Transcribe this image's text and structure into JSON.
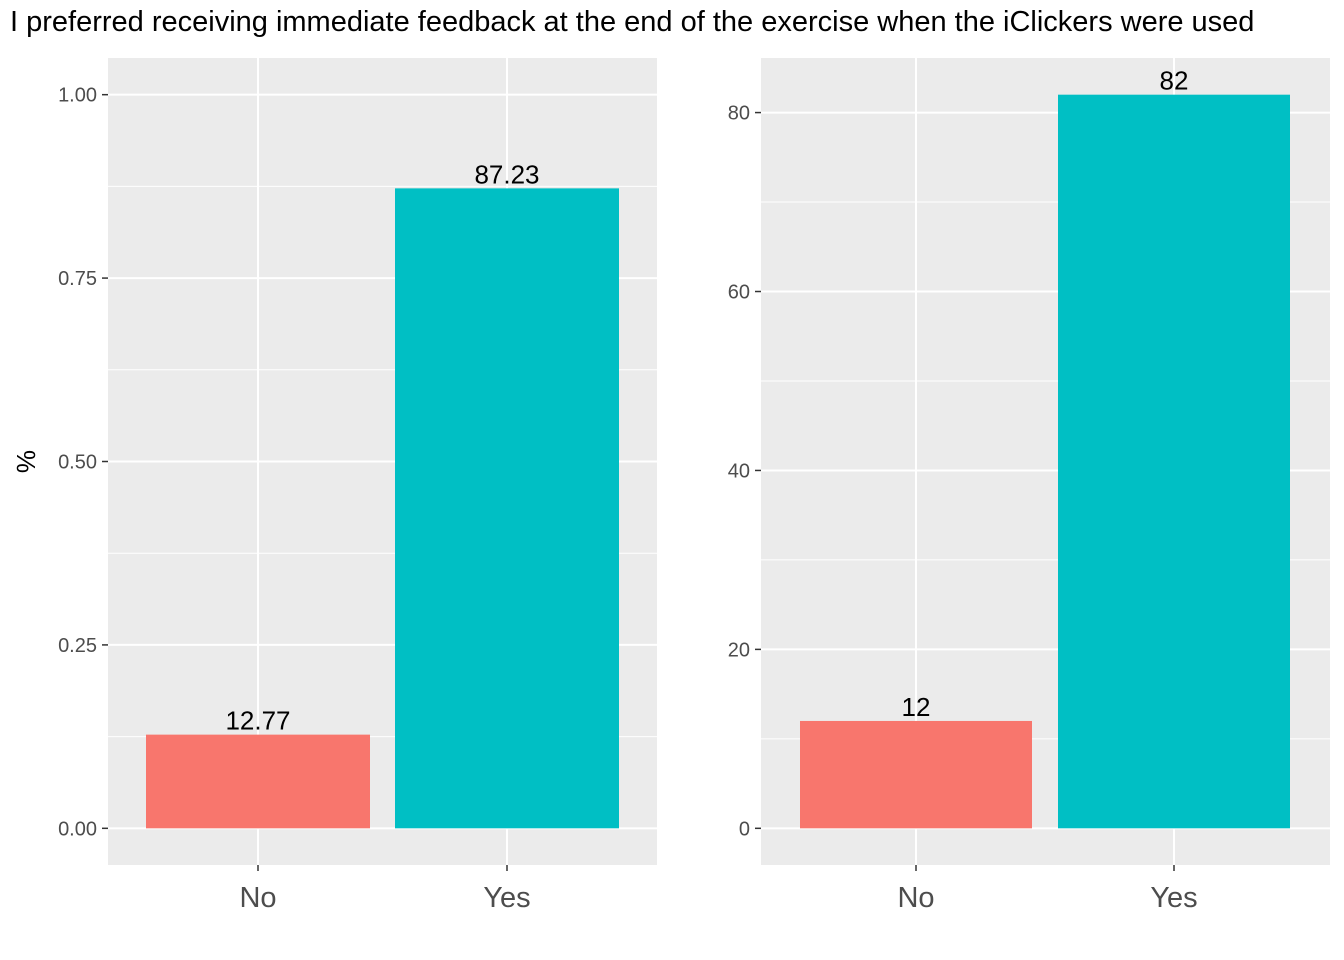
{
  "title": "I preferred receiving immediate feedback at the end of the exercise when the iClickers were used",
  "colors": {
    "No": "#F8766D",
    "Yes": "#00BFC4",
    "panel_bg": "#EBEBEB",
    "grid": "#FFFFFF"
  },
  "chart_data": [
    {
      "type": "bar",
      "categories": [
        "No",
        "Yes"
      ],
      "values": [
        0.1277,
        0.8723
      ],
      "data_labels": [
        "12.77",
        "87.23"
      ],
      "ylabel": "%",
      "ylim": [
        -0.05,
        1.05
      ],
      "yticks": [
        0.0,
        0.25,
        0.5,
        0.75,
        1.0
      ],
      "ytick_labels": [
        "0.00",
        "0.25",
        "0.50",
        "0.75",
        "1.00"
      ],
      "grid": true
    },
    {
      "type": "bar",
      "categories": [
        "No",
        "Yes"
      ],
      "values": [
        12,
        82
      ],
      "data_labels": [
        "12",
        "82"
      ],
      "ylabel": "",
      "ylim": [
        -4.1,
        86.1
      ],
      "yticks": [
        0,
        20,
        40,
        60,
        80
      ],
      "ytick_labels": [
        "0",
        "20",
        "40",
        "60",
        "80"
      ],
      "grid": true
    }
  ]
}
